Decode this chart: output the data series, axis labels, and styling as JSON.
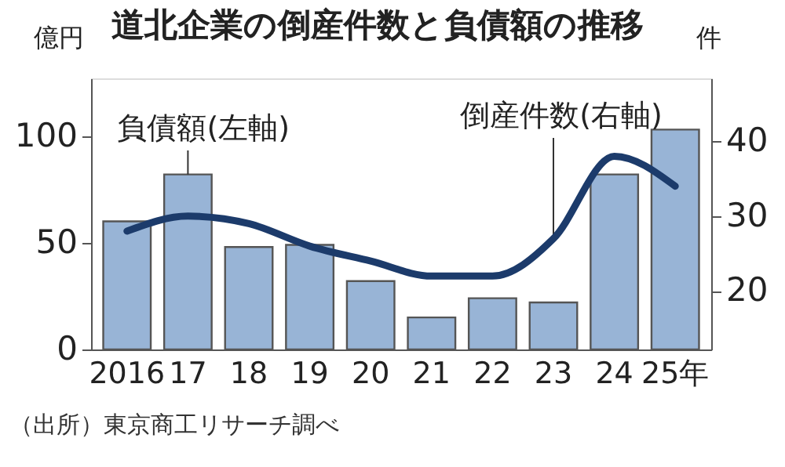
{
  "chart_data": {
    "type": "bar",
    "title": "道北企業の倒産件数と負債額の推移",
    "categories": [
      "2016",
      "17",
      "18",
      "19",
      "20",
      "21",
      "22",
      "23",
      "24",
      "25年"
    ],
    "series": [
      {
        "color": "#98b4d6",
        "values": [
          60,
          82,
          48,
          49,
          32,
          15,
          24,
          22,
          82,
          103
        ]
      },
      {
        "type": "line",
        "axis": "y2",
        "color": "#1c3b6b",
        "values": [
          28,
          30,
          29,
          26,
          24,
          22,
          22,
          27,
          38,
          34
        ]
      }
    ],
    "ylabel": "億円",
    "y2label": "件",
    "ylim": [
      0,
      127
    ],
    "yticks": [
      0,
      50,
      100
    ],
    "y2lim": [
      12.2,
      48.4
    ],
    "y2ticks": [
      20,
      30,
      40
    ],
    "annotations": [
      {
        "text": "負債額(左軸)",
        "x": "17",
        "y": 82
      },
      {
        "text": "倒産件数(右軸)",
        "x": "23",
        "y": 52
      },
      "（出所）東京商工リサーチ調べ"
    ]
  }
}
